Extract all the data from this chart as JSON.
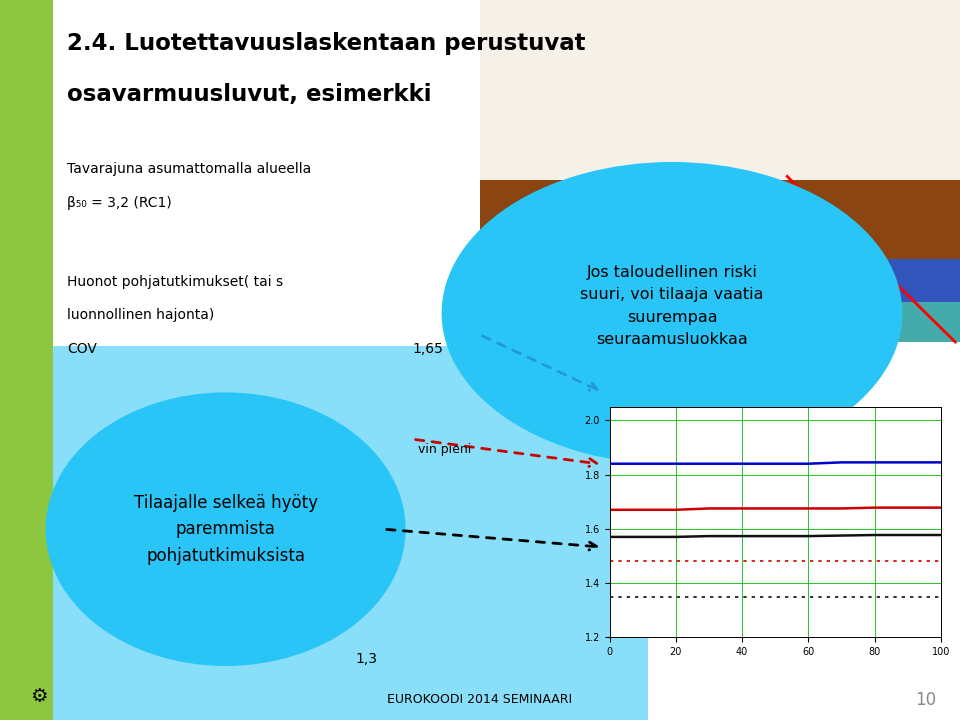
{
  "title_line1": "2.4. Luotettavuuslaskentaan perustuvat",
  "title_line2": "osavarmuusluvut, esimerkki",
  "text_line1": "Tavarajuna asumattomalla alueella",
  "text_line2": "β₅₀ = 3,2 (RC1)",
  "text_line3": "Huonot pohjatutkimukset( tai s",
  "text_line4": "luonnollinen hajonta)",
  "text_line5": "COV",
  "text_line5b": "1,65",
  "text_line6": "1,3",
  "bubble1_text": "Jos taloudellinen riski\nsuuri, voi tilaaja vaatia\nsuurempaa\nseuraamusluokkaa",
  "bubble2_text": "Tilaajalle selkeä hyöty\nparemmista\npohjatutkimuksista",
  "label_vin_pieni": "vin pieni",
  "footer": "EUROKOODI 2014 SEMINAARI",
  "page_num": "10",
  "bg_color": "#ffffff",
  "green_bar_color": "#8dc63f",
  "light_blue_color": "#29c5f6",
  "bubble_color": "#29c5f6",
  "graph_grid_color": "#00bb00",
  "line_blue": "#0000cc",
  "line_red": "#cc0000",
  "line_black": "#111111",
  "graph_xlim": [
    0,
    100
  ],
  "graph_ylim": [
    1.2,
    2.05
  ],
  "graph_x": [
    0,
    5,
    10,
    20,
    30,
    40,
    50,
    60,
    70,
    80,
    90,
    100
  ],
  "line_blue_y": [
    1.84,
    1.84,
    1.84,
    1.84,
    1.84,
    1.84,
    1.84,
    1.84,
    1.845,
    1.845,
    1.845,
    1.845
  ],
  "line_red_y": [
    1.67,
    1.67,
    1.67,
    1.67,
    1.675,
    1.675,
    1.675,
    1.675,
    1.675,
    1.678,
    1.678,
    1.678
  ],
  "line_black_y": [
    1.57,
    1.57,
    1.57,
    1.57,
    1.573,
    1.573,
    1.573,
    1.573,
    1.575,
    1.577,
    1.577,
    1.577
  ],
  "line_red_dot_y": [
    1.48,
    1.48,
    1.48,
    1.48,
    1.48,
    1.48,
    1.48,
    1.48,
    1.48,
    1.48,
    1.48,
    1.48
  ],
  "line_black_dot_y": [
    1.35,
    1.35,
    1.35,
    1.35,
    1.35,
    1.35,
    1.35,
    1.35,
    1.35,
    1.35,
    1.35,
    1.35
  ]
}
